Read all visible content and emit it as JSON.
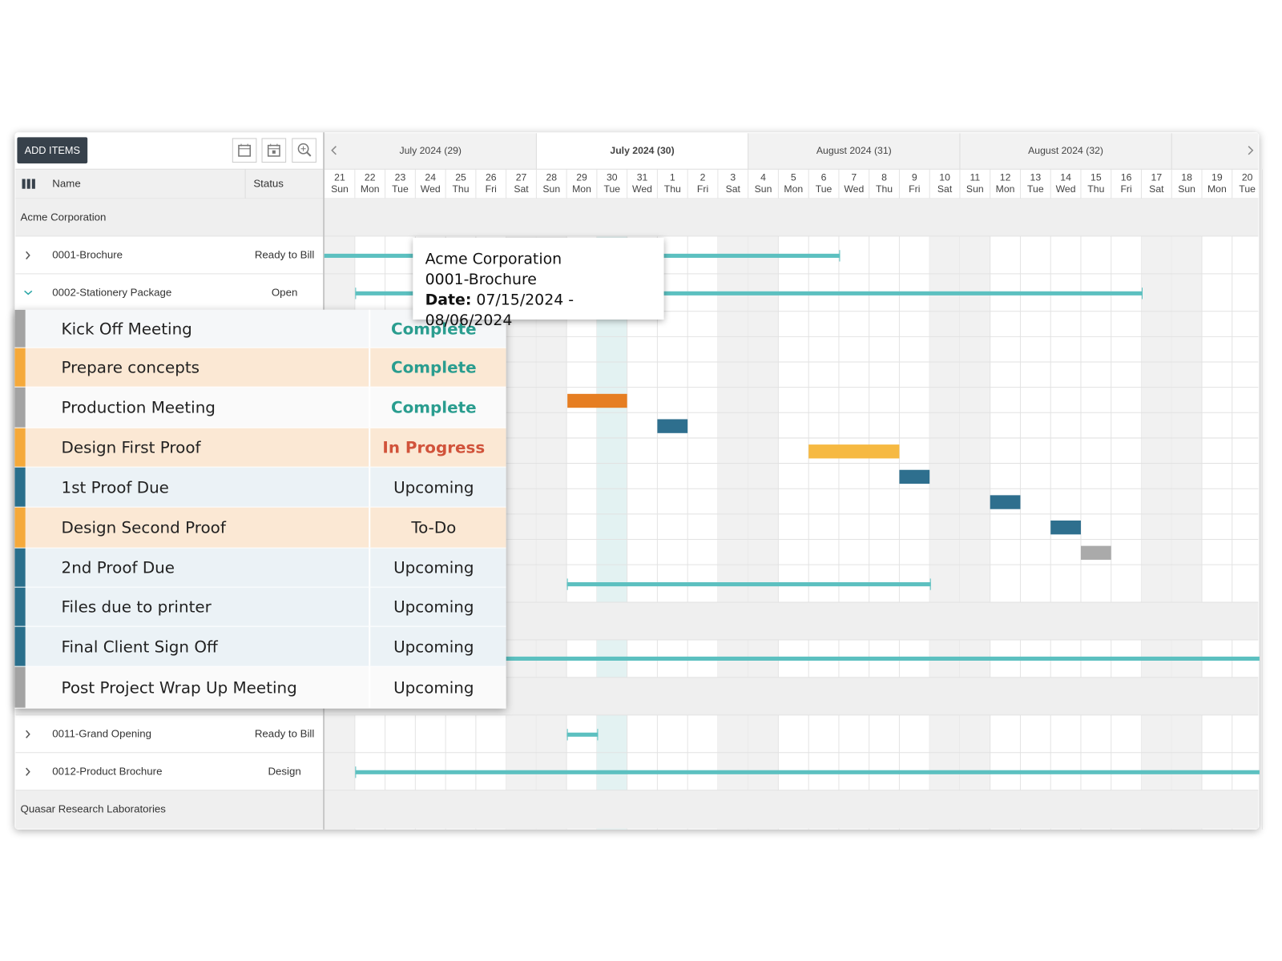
{
  "toolbar": {
    "add_button": "ADD ITEMS"
  },
  "columns": {
    "name": "Name",
    "status": "Status"
  },
  "timeline": {
    "weeks": [
      "July 2024 (29)",
      "July 2024 (30)",
      "August 2024 (31)",
      "August 2024 (32)"
    ],
    "days": [
      {
        "day": 21,
        "weekday": "Sun"
      },
      {
        "day": 22,
        "weekday": "Mon"
      },
      {
        "day": 23,
        "weekday": "Tue"
      },
      {
        "day": 24,
        "weekday": "Wed"
      },
      {
        "day": 25,
        "weekday": "Thu"
      },
      {
        "day": 26,
        "weekday": "Fri"
      },
      {
        "day": 27,
        "weekday": "Sat"
      },
      {
        "day": 28,
        "weekday": "Sun"
      },
      {
        "day": 29,
        "weekday": "Mon"
      },
      {
        "day": 30,
        "weekday": "Tue"
      },
      {
        "day": 31,
        "weekday": "Wed"
      },
      {
        "day": 1,
        "weekday": "Thu"
      },
      {
        "day": 2,
        "weekday": "Fri"
      },
      {
        "day": 3,
        "weekday": "Sat"
      },
      {
        "day": 4,
        "weekday": "Sun"
      },
      {
        "day": 5,
        "weekday": "Mon"
      },
      {
        "day": 6,
        "weekday": "Tue"
      },
      {
        "day": 7,
        "weekday": "Wed"
      },
      {
        "day": 8,
        "weekday": "Thu"
      },
      {
        "day": 9,
        "weekday": "Fri"
      },
      {
        "day": 10,
        "weekday": "Sat"
      },
      {
        "day": 11,
        "weekday": "Sun"
      },
      {
        "day": 12,
        "weekday": "Mon"
      },
      {
        "day": 13,
        "weekday": "Tue"
      },
      {
        "day": 14,
        "weekday": "Wed"
      },
      {
        "day": 15,
        "weekday": "Thu"
      },
      {
        "day": 16,
        "weekday": "Fri"
      },
      {
        "day": 17,
        "weekday": "Sat"
      },
      {
        "day": 18,
        "weekday": "Sun"
      },
      {
        "day": 19,
        "weekday": "Mon"
      },
      {
        "day": 20,
        "weekday": "Tue"
      }
    ]
  },
  "groups": [
    "Acme Corporation",
    "Quasar Research Laboratories"
  ],
  "projects": [
    {
      "name": "0001-Brochure",
      "status": "Ready to Bill"
    },
    {
      "name": "0002-Stationery Package",
      "status": "Open"
    },
    {
      "name": "0011-Grand Opening",
      "status": "Ready to Bill"
    },
    {
      "name": "0012-Product Brochure",
      "status": "Design"
    }
  ],
  "tasks": [
    {
      "name": "Kick Off Meeting",
      "status": "Complete"
    },
    {
      "name": "Prepare concepts",
      "status": "Complete"
    },
    {
      "name": "Production Meeting",
      "status": "Complete"
    },
    {
      "name": "Design First Proof",
      "status": "In Progress"
    },
    {
      "name": "1st Proof Due",
      "status": "Upcoming"
    },
    {
      "name": "Design Second Proof",
      "status": "To-Do"
    },
    {
      "name": "2nd Proof Due",
      "status": "Upcoming"
    },
    {
      "name": "Files due to printer",
      "status": "Upcoming"
    },
    {
      "name": "Final Client Sign Off",
      "status": "Upcoming"
    },
    {
      "name": "Post Project Wrap Up Meeting",
      "status": "Upcoming"
    }
  ],
  "tooltip": {
    "client": "Acme Corporation",
    "project": "0001-Brochure",
    "date_label": "Date:",
    "date_range": "07/15/2024 - 08/06/2024"
  }
}
